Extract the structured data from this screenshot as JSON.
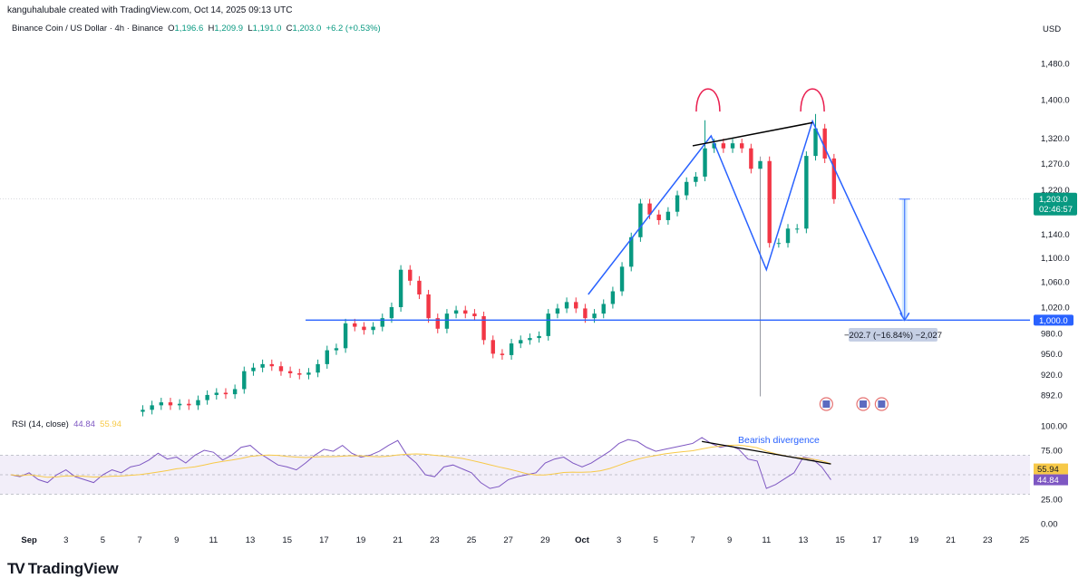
{
  "header": {
    "credit": "kanguhalubale created with TradingView.com, Oct 14, 2025 09:13 UTC",
    "symbol": "Binance Coin / US Dollar · 4h · Binance",
    "open_label": "O",
    "open": "1,196.6",
    "high_label": "H",
    "high": "1,209.9",
    "low_label": "L",
    "low": "1,191.0",
    "close_label": "C",
    "close": "1,203.0",
    "change": "+6.2 (+0.53%)",
    "currency": "USD"
  },
  "colors": {
    "up": "#089981",
    "down": "#f23645",
    "drawing": "#2962ff",
    "rsi": "#7e57c2",
    "rsi_ma": "#f7c948",
    "arc": "#e91e4f"
  },
  "icons": [
    "economic-event-us-flag-icon",
    "economic-event-us-flag-icon",
    "economic-event-us-flag-icon"
  ],
  "logo": "TradingView",
  "chart_data": [
    {
      "type": "candlestick",
      "scale": "log",
      "interval_drawn": "12h (approx. from 4h chart)",
      "start": "2025-09-07T00:00",
      "closes": [
        872,
        878,
        882,
        878,
        880,
        878,
        885,
        892,
        895,
        893,
        900,
        925,
        930,
        935,
        932,
        925,
        922,
        920,
        923,
        935,
        955,
        958,
        995,
        990,
        985,
        990,
        1003,
        1020,
        1080,
        1062,
        1040,
        1003,
        987,
        1010,
        1015,
        1010,
        1006,
        970,
        950,
        948,
        965,
        970,
        973,
        976,
        1010,
        1018,
        1028,
        1018,
        1003,
        1010,
        1025,
        1045,
        1085,
        1135,
        1195,
        1175,
        1165,
        1180,
        1210,
        1235,
        1245,
        1300,
        1310,
        1300,
        1310,
        1300,
        1260,
        1275,
        1125,
        1125,
        1150,
        1150,
        1285,
        1340,
        1280,
        1203
      ],
      "wick_extremes": [
        {
          "date": "2025-10-07T12:00",
          "high": 1357
        },
        {
          "date": "2025-10-10T12:00",
          "low": 890
        },
        {
          "date": "2025-10-13T12:00",
          "high": 1370
        }
      ],
      "y_ticks": [
        "1,480.0",
        "1,400.0",
        "1,320.0",
        "1,270.0",
        "1,220.0",
        "1,140.0",
        "1,100.0",
        "1,060.0",
        "1,020.0",
        "980.0",
        "950.0",
        "920.0",
        "892.0"
      ],
      "y_tick_values": [
        1480,
        1400,
        1320,
        1270,
        1220,
        1140,
        1100,
        1060,
        1020,
        980,
        950,
        920,
        892
      ],
      "last_price": {
        "value": 1203,
        "label": "1,203.0",
        "countdown": "02:46:57"
      },
      "support": {
        "value": 1000,
        "label": "1,000.0",
        "from": "2025-09-16T00:00"
      },
      "zigzag": [
        [
          "2025-10-01T08:00",
          1040
        ],
        [
          "2025-10-08T00:00",
          1325
        ],
        [
          "2025-10-11T00:00",
          1080
        ],
        [
          "2025-10-13T12:00",
          1355
        ],
        [
          "2025-10-18T12:00",
          1000
        ]
      ],
      "resistance_line": [
        [
          "2025-10-07T00:00",
          1305
        ],
        [
          "2025-10-13T12:00",
          1352
        ]
      ],
      "tops": [
        "2025-10-07T20:00",
        "2025-10-13T12:00"
      ],
      "measure": {
        "date": "2025-10-18T12:00",
        "from": 1203,
        "to": 1000,
        "label": "−202.7 (−16.84%) −2,027"
      },
      "event_dates": [
        "2025-10-14T06:00",
        "2025-10-16T06:00",
        "2025-10-17T06:00"
      ]
    },
    {
      "type": "line",
      "title": "RSI (14, close)",
      "value_label": "44.84",
      "ma_label": "55.94",
      "start": "2025-08-31T00:00",
      "rsi": [
        50,
        48,
        52,
        45,
        42,
        50,
        55,
        48,
        45,
        42,
        50,
        55,
        52,
        58,
        60,
        65,
        72,
        66,
        68,
        62,
        70,
        75,
        73,
        65,
        70,
        78,
        80,
        72,
        66,
        60,
        58,
        55,
        62,
        70,
        76,
        74,
        80,
        72,
        68,
        70,
        74,
        80,
        85,
        70,
        62,
        50,
        48,
        58,
        60,
        56,
        52,
        42,
        36,
        38,
        45,
        48,
        50,
        52,
        62,
        66,
        68,
        62,
        58,
        62,
        68,
        74,
        82,
        86,
        84,
        78,
        74,
        76,
        78,
        80,
        82,
        88,
        82,
        78,
        80,
        76,
        66,
        64,
        36,
        40,
        46,
        52,
        68,
        66,
        58,
        44.84
      ],
      "y_ticks": [
        "100.00",
        "75.00",
        "25.00",
        "0.00"
      ],
      "y_tick_values": [
        100,
        75,
        25,
        0
      ],
      "band": [
        30,
        70
      ],
      "divergence_line": [
        [
          "2025-10-07T12:00",
          84
        ],
        [
          "2025-10-14T12:00",
          61
        ]
      ],
      "divergence_label": "Bearish divergence"
    }
  ],
  "x_axis": {
    "labels": [
      "Sep",
      "3",
      "5",
      "7",
      "9",
      "11",
      "13",
      "15",
      "17",
      "19",
      "21",
      "23",
      "25",
      "27",
      "29",
      "Oct",
      "3",
      "5",
      "7",
      "9",
      "11",
      "13",
      "15",
      "17",
      "19",
      "21",
      "23",
      "25"
    ],
    "dates": [
      "2025-09-01",
      "2025-09-03",
      "2025-09-05",
      "2025-09-07",
      "2025-09-09",
      "2025-09-11",
      "2025-09-13",
      "2025-09-15",
      "2025-09-17",
      "2025-09-19",
      "2025-09-21",
      "2025-09-23",
      "2025-09-25",
      "2025-09-27",
      "2025-09-29",
      "2025-10-01",
      "2025-10-03",
      "2025-10-05",
      "2025-10-07",
      "2025-10-09",
      "2025-10-11",
      "2025-10-13",
      "2025-10-15",
      "2025-10-17",
      "2025-10-19",
      "2025-10-21",
      "2025-10-23",
      "2025-10-25"
    ]
  }
}
